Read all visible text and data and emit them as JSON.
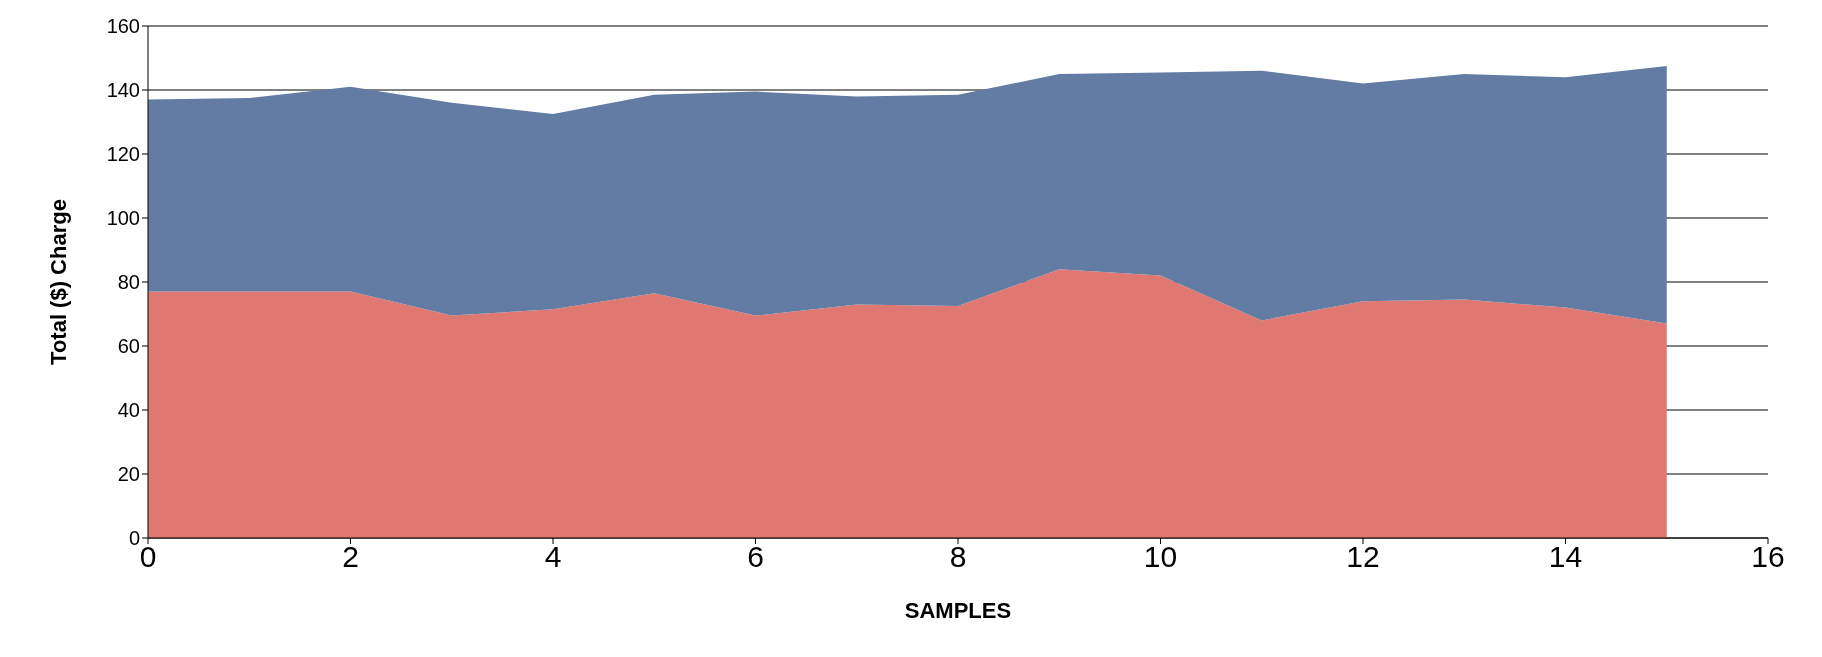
{
  "chart_data": {
    "type": "area",
    "stacked": true,
    "xlabel": "SAMPLES",
    "ylabel": "Total ($) Charge",
    "x": [
      0,
      1,
      2,
      3,
      4,
      5,
      6,
      7,
      8,
      9,
      10,
      11,
      12,
      13,
      14,
      15
    ],
    "series": [
      {
        "color": "#de7870",
        "values": [
          77,
          77,
          77,
          69.5,
          71.5,
          76.5,
          69.5,
          73,
          72.5,
          84,
          82,
          68,
          74,
          74.5,
          72,
          67
        ]
      },
      {
        "color": "#637ca4",
        "values": [
          60,
          60.5,
          64,
          66.5,
          61,
          62,
          70,
          65,
          66,
          61,
          63.5,
          78,
          68,
          70.5,
          72,
          80.5
        ]
      }
    ],
    "xlim": [
      0,
      16
    ],
    "xticks": [
      0,
      2,
      4,
      6,
      8,
      10,
      12,
      14,
      16
    ],
    "ylim": [
      0,
      160
    ],
    "yticks": [
      0,
      20,
      40,
      60,
      80,
      100,
      120,
      140,
      160
    ],
    "grid": "y",
    "legend": false,
    "marker": "none"
  }
}
